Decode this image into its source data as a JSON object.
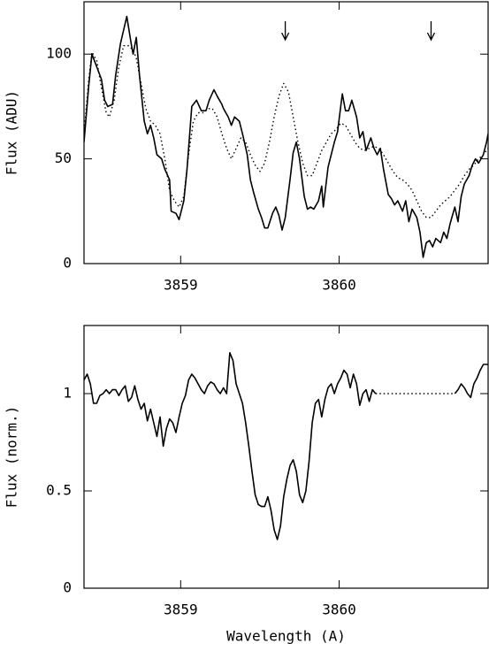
{
  "chart_data": [
    {
      "type": "line",
      "ylabel": "Flux (ADU)",
      "xlim": [
        3858.39,
        3860.94
      ],
      "ylim": [
        0,
        125
      ],
      "xticks": [
        3859,
        3860
      ],
      "yticks": [
        0,
        50,
        100
      ],
      "arrows": [
        3859.66,
        3860.58
      ],
      "series": [
        {
          "color": "#000000",
          "style": "solid",
          "x": [
            3858.39,
            3858.42,
            3858.44,
            3858.46,
            3858.48,
            3858.5,
            3858.52,
            3858.54,
            3858.57,
            3858.59,
            3858.62,
            3858.66,
            3858.69,
            3858.7,
            3858.72,
            3858.74,
            3858.77,
            3858.79,
            3858.81,
            3858.83,
            3858.85,
            3858.88,
            3858.9,
            3858.93,
            3858.94,
            3858.97,
            3858.99,
            3859.02,
            3859.04,
            3859.07,
            3859.1,
            3859.13,
            3859.16,
            3859.18,
            3859.21,
            3859.23,
            3859.26,
            3859.27,
            3859.3,
            3859.32,
            3859.34,
            3859.37,
            3859.39,
            3859.42,
            3859.44,
            3859.46,
            3859.49,
            3859.51,
            3859.53,
            3859.55,
            3859.58,
            3859.6,
            3859.62,
            3859.64,
            3859.66,
            3859.69,
            3859.71,
            3859.73,
            3859.75,
            3859.78,
            3859.8,
            3859.82,
            3859.84,
            3859.87,
            3859.89,
            3859.9,
            3859.93,
            3859.95,
            3859.97,
            3859.99,
            3860.02,
            3860.04,
            3860.06,
            3860.08,
            3860.11,
            3860.13,
            3860.15,
            3860.17,
            3860.2,
            3860.22,
            3860.24,
            3860.26,
            3860.28,
            3860.31,
            3860.33,
            3860.35,
            3860.37,
            3860.4,
            3860.42,
            3860.44,
            3860.46,
            3860.49,
            3860.51,
            3860.53,
            3860.55,
            3860.57,
            3860.59,
            3860.61,
            3860.64,
            3860.66,
            3860.68,
            3860.7,
            3860.73,
            3860.75,
            3860.77,
            3860.79,
            3860.82,
            3860.84,
            3860.86,
            3860.88,
            3860.91,
            3860.93,
            3860.94
          ],
          "values": [
            58,
            85,
            100,
            96,
            92,
            88,
            78,
            75,
            76,
            90,
            105,
            118,
            104,
            100,
            108,
            90,
            68,
            62,
            66,
            60,
            52,
            50,
            45,
            40,
            25,
            24,
            21,
            30,
            45,
            75,
            78,
            73,
            73,
            78,
            83,
            80,
            76,
            74,
            70,
            66,
            70,
            68,
            62,
            52,
            40,
            34,
            26,
            22,
            17,
            17,
            24,
            27,
            23,
            16,
            22,
            40,
            53,
            58,
            50,
            32,
            26,
            27,
            26,
            30,
            37,
            27,
            46,
            52,
            58,
            63,
            81,
            73,
            73,
            78,
            70,
            60,
            63,
            54,
            60,
            55,
            52,
            55,
            45,
            33,
            31,
            28,
            30,
            25,
            30,
            20,
            26,
            22,
            15,
            3,
            10,
            11,
            8,
            12,
            10,
            15,
            12,
            19,
            27,
            20,
            32,
            38,
            42,
            47,
            50,
            48,
            52,
            58,
            62
          ]
        },
        {
          "color": "#000000",
          "style": "dotted",
          "x": [
            3858.39,
            3858.42,
            3858.44,
            3858.47,
            3858.5,
            3858.53,
            3858.55,
            3858.58,
            3858.61,
            3858.64,
            3858.67,
            3858.7,
            3858.72,
            3858.75,
            3858.78,
            3858.81,
            3858.84,
            3858.87,
            3858.9,
            3858.93,
            3858.96,
            3858.99,
            3859.02,
            3859.05,
            3859.08,
            3859.11,
            3859.14,
            3859.17,
            3859.2,
            3859.23,
            3859.26,
            3859.29,
            3859.32,
            3859.35,
            3859.38,
            3859.41,
            3859.44,
            3859.47,
            3859.5,
            3859.53,
            3859.56,
            3859.59,
            3859.62,
            3859.65,
            3859.68,
            3859.71,
            3859.74,
            3859.77,
            3859.8,
            3859.83,
            3859.86,
            3859.89,
            3859.92,
            3859.95,
            3859.98,
            3860.01,
            3860.04,
            3860.07,
            3860.1,
            3860.13,
            3860.16,
            3860.19,
            3860.22,
            3860.25,
            3860.28,
            3860.31,
            3860.34,
            3860.37,
            3860.4,
            3860.43,
            3860.46,
            3860.49,
            3860.52,
            3860.55,
            3860.58,
            3860.61,
            3860.64,
            3860.67,
            3860.7,
            3860.73,
            3860.76,
            3860.79,
            3860.82,
            3860.85,
            3860.88,
            3860.91,
            3860.94
          ],
          "values": [
            62,
            88,
            101,
            97,
            84,
            72,
            70,
            78,
            94,
            104,
            104,
            102,
            98,
            86,
            74,
            68,
            66,
            62,
            50,
            35,
            30,
            27,
            32,
            52,
            68,
            72,
            72,
            74,
            74,
            70,
            62,
            55,
            50,
            55,
            60,
            58,
            52,
            47,
            44,
            48,
            58,
            70,
            80,
            86,
            82,
            70,
            58,
            48,
            42,
            42,
            48,
            54,
            58,
            62,
            64,
            67,
            66,
            62,
            58,
            55,
            54,
            55,
            56,
            55,
            52,
            48,
            44,
            41,
            40,
            38,
            35,
            30,
            25,
            22,
            22,
            25,
            28,
            30,
            32,
            35,
            38,
            42,
            45,
            47,
            50,
            52,
            55
          ]
        }
      ]
    },
    {
      "type": "line",
      "ylabel": "Flux (norm.)",
      "xlabel": "Wavelength (A)",
      "xlim": [
        3858.39,
        3860.94
      ],
      "ylim": [
        0,
        1.35
      ],
      "xticks": [
        3859,
        3860
      ],
      "yticks": [
        0,
        0.5,
        1
      ],
      "series": [
        {
          "color": "#000000",
          "style": "solid",
          "x": [
            3858.39,
            3858.41,
            3858.43,
            3858.45,
            3858.47,
            3858.49,
            3858.51,
            3858.53,
            3858.55,
            3858.57,
            3858.59,
            3858.61,
            3858.63,
            3858.65,
            3858.67,
            3858.69,
            3858.71,
            3858.73,
            3858.75,
            3858.77,
            3858.79,
            3858.81,
            3858.83,
            3858.85,
            3858.87,
            3858.89,
            3858.91,
            3858.93,
            3858.95,
            3858.97,
            3858.99,
            3859.01,
            3859.03,
            3859.05,
            3859.07,
            3859.09,
            3859.11,
            3859.13,
            3859.15,
            3859.17,
            3859.19,
            3859.21,
            3859.23,
            3859.25,
            3859.27,
            3859.29,
            3859.31,
            3859.33,
            3859.35,
            3859.37,
            3859.39,
            3859.41,
            3859.43,
            3859.45,
            3859.47,
            3859.49,
            3859.51,
            3859.53,
            3859.55,
            3859.57,
            3859.59,
            3859.61,
            3859.63,
            3859.65,
            3859.67,
            3859.69,
            3859.71,
            3859.73,
            3859.75,
            3859.77,
            3859.79,
            3859.81,
            3859.83,
            3859.85,
            3859.87,
            3859.89,
            3859.91,
            3859.93,
            3859.95,
            3859.97,
            3859.99,
            3860.01,
            3860.03,
            3860.05,
            3860.07,
            3860.09,
            3860.11,
            3860.13,
            3860.15,
            3860.17,
            3860.19,
            3860.21,
            3860.23,
            3860.5,
            3860.73,
            3860.75,
            3860.77,
            3860.79,
            3860.81,
            3860.83,
            3860.85,
            3860.87,
            3860.89,
            3860.91,
            3860.94
          ],
          "values": [
            1.07,
            1.1,
            1.05,
            0.95,
            0.95,
            0.99,
            1.0,
            1.02,
            1.0,
            1.02,
            1.02,
            0.99,
            1.02,
            1.04,
            0.96,
            0.98,
            1.04,
            0.97,
            0.92,
            0.95,
            0.86,
            0.92,
            0.85,
            0.78,
            0.88,
            0.73,
            0.82,
            0.87,
            0.85,
            0.8,
            0.88,
            0.95,
            0.99,
            1.07,
            1.1,
            1.08,
            1.05,
            1.02,
            1.0,
            1.04,
            1.06,
            1.05,
            1.02,
            1.0,
            1.03,
            1.0,
            1.21,
            1.17,
            1.05,
            1.0,
            0.95,
            0.85,
            0.73,
            0.6,
            0.48,
            0.43,
            0.42,
            0.42,
            0.47,
            0.4,
            0.3,
            0.25,
            0.32,
            0.47,
            0.56,
            0.63,
            0.66,
            0.6,
            0.48,
            0.44,
            0.5,
            0.65,
            0.85,
            0.95,
            0.97,
            0.88,
            0.97,
            1.03,
            1.05,
            1.0,
            1.05,
            1.08,
            1.12,
            1.1,
            1.03,
            1.1,
            1.05,
            0.94,
            1.0,
            1.02,
            0.96,
            1.02,
            1.0,
            null,
            1.0,
            1.02,
            1.05,
            1.03,
            1.0,
            0.98,
            1.05,
            1.08,
            1.12,
            1.15,
            1.15
          ]
        },
        {
          "color": "#000000",
          "style": "dotted",
          "x": [
            3860.23,
            3860.73
          ],
          "values": [
            1,
            1
          ]
        }
      ]
    }
  ]
}
